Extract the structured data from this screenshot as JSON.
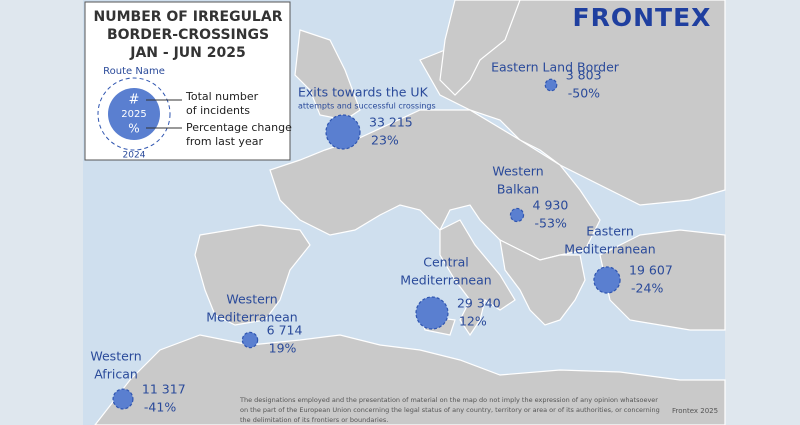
{
  "legend": {
    "title_lines": [
      "NUMBER OF IRREGULAR",
      "BORDER-CROSSINGS",
      "JAN - JUN 2025"
    ],
    "route_name": "Route Name",
    "count_symbol": "#",
    "year_current": "2025",
    "change_symbol": "%",
    "year_previous": "2024",
    "count_lines": [
      "Total number",
      "of incidents"
    ],
    "change_lines": [
      "Percentage change",
      "from last year"
    ]
  },
  "logo": "FRONTEX",
  "routes": [
    {
      "name_lines": [
        "Eastern Land Border"
      ],
      "count": 3803,
      "count_label": "3 803",
      "change": "-50%"
    },
    {
      "name_lines": [
        "Exits towards the UK"
      ],
      "subtitle": "attempts and successful crossings",
      "count": 33215,
      "count_label": "33 215",
      "change": "23%"
    },
    {
      "name_lines": [
        "Western",
        "Balkan"
      ],
      "count": 4930,
      "count_label": "4 930",
      "change": "-53%"
    },
    {
      "name_lines": [
        "Eastern",
        "Mediterranean"
      ],
      "count": 19607,
      "count_label": "19 607",
      "change": "-24%"
    },
    {
      "name_lines": [
        "Central",
        "Mediterranean"
      ],
      "count": 29340,
      "count_label": "29 340",
      "change": "12%"
    },
    {
      "name_lines": [
        "Western",
        "Mediterranean"
      ],
      "count": 6714,
      "count_label": "6 714",
      "change": "19%"
    },
    {
      "name_lines": [
        "Western",
        "African"
      ],
      "count": 11317,
      "count_label": "11 317",
      "change": "-41%"
    }
  ],
  "disclaimer_lines": [
    "The designations employed and the presentation of material on the map do not imply the expression of any opinion whatsoever",
    "on the part of the European Union concerning the legal status of any country, territory or area or of its authorities, or concerning",
    "the delimitation of its frontiers or boundaries."
  ],
  "credit": "Frontex 2025"
}
